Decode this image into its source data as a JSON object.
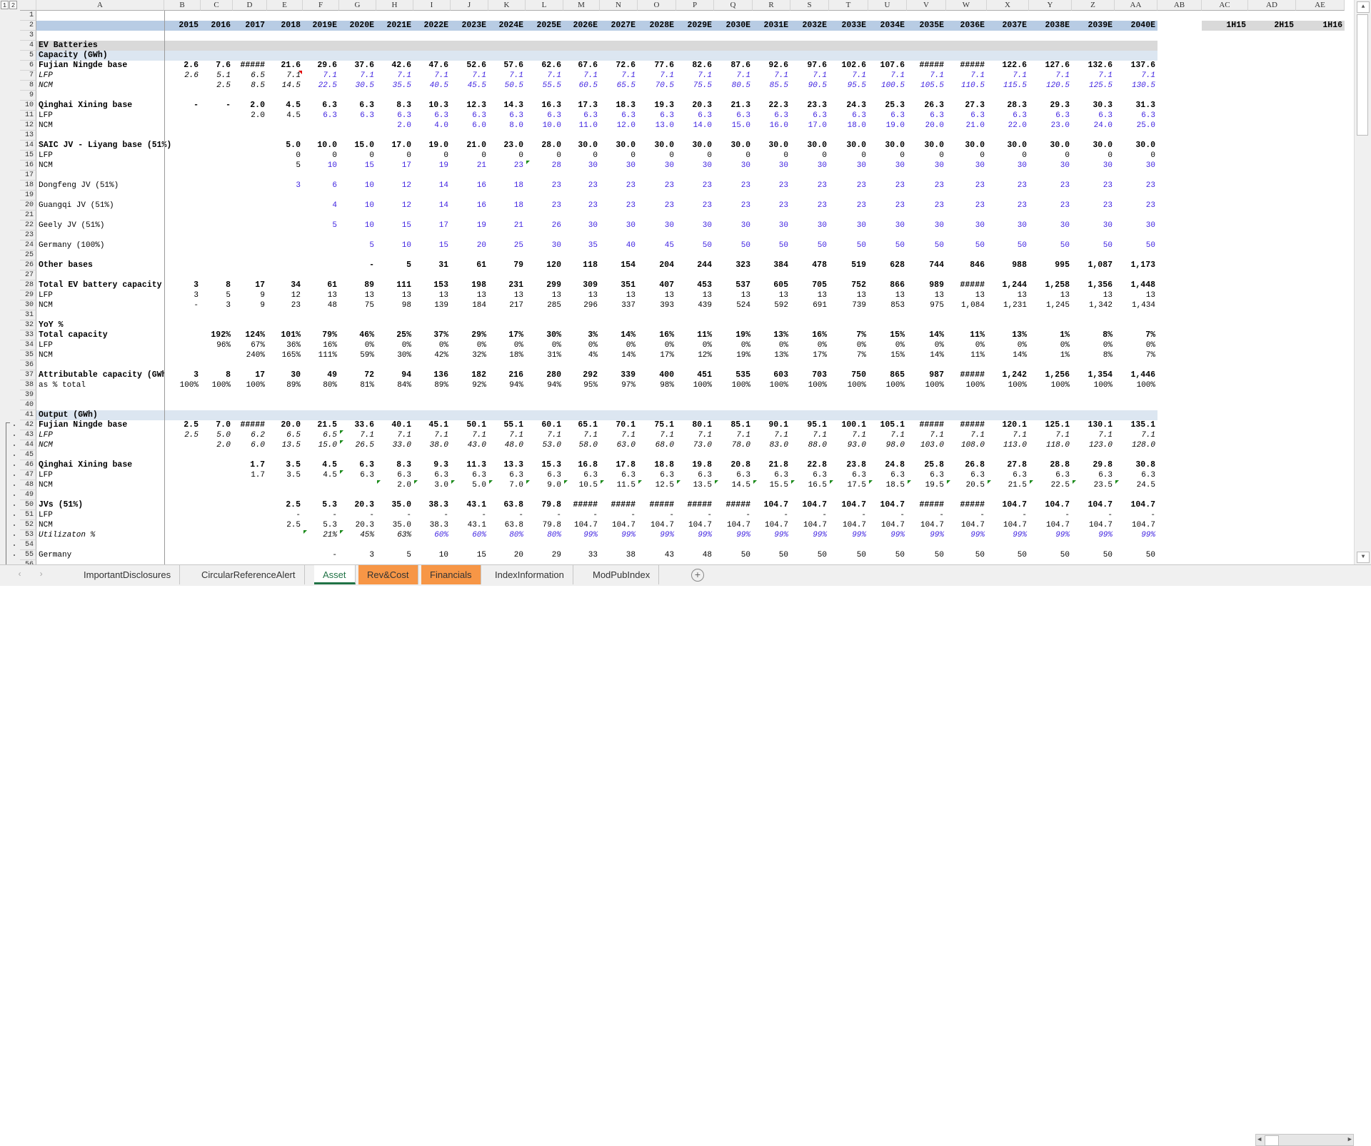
{
  "app": {
    "level_buttons": [
      "1",
      "2"
    ]
  },
  "columns": [
    "A",
    "B",
    "C",
    "D",
    "E",
    "F",
    "G",
    "H",
    "I",
    "J",
    "K",
    "L",
    "M",
    "N",
    "O",
    "P",
    "Q",
    "R",
    "S",
    "T",
    "U",
    "V",
    "W",
    "X",
    "Y",
    "Z",
    "AA",
    "AB",
    "AC",
    "AD",
    "AE"
  ],
  "half_year_headers": [
    "1H15",
    "2H15",
    "1H16"
  ],
  "row_numbers": [
    "1",
    "2",
    "3",
    "4",
    "5",
    "6",
    "7",
    "8",
    "9",
    "10",
    "11",
    "12",
    "13",
    "14",
    "15",
    "16",
    "17",
    "18",
    "19",
    "20",
    "21",
    "22",
    "23",
    "24",
    "25",
    "26",
    "27",
    "28",
    "29",
    "30",
    "31",
    "32",
    "33",
    "34",
    "35",
    "36",
    "37",
    "38",
    "39",
    "40",
    "41",
    "42",
    "43",
    "44",
    "45",
    "46",
    "47",
    "48",
    "49",
    "50",
    "51",
    "52",
    "53",
    "54",
    "55",
    "56"
  ],
  "colors": {
    "header_band": "#b8cce4",
    "section_band": "#d9d9d9",
    "subsection_band": "#dce6f1",
    "input_blue": "#3c1fe0",
    "tab_orange": "#f79646",
    "active_tab": "#217346"
  },
  "rows": [
    {
      "num": 2,
      "label": "",
      "values": [
        "2015",
        "2016",
        "2017",
        "2018",
        "2019E",
        "2020E",
        "2021E",
        "2022E",
        "2023E",
        "2024E",
        "2025E",
        "2026E",
        "2027E",
        "2028E",
        "2029E",
        "2030E",
        "2031E",
        "2032E",
        "2033E",
        "2034E",
        "2035E",
        "2036E",
        "2037E",
        "2038E",
        "2039E",
        "2040E"
      ]
    },
    {
      "num": 4,
      "label": "EV Batteries",
      "values": []
    },
    {
      "num": 5,
      "label": "Capacity (GWh)",
      "values": []
    },
    {
      "num": 6,
      "label": "Fujian Ningde base",
      "values": [
        "2.6",
        "7.6",
        "#####",
        "21.6",
        "29.6",
        "37.6",
        "42.6",
        "47.6",
        "52.6",
        "57.6",
        "62.6",
        "67.6",
        "72.6",
        "77.6",
        "82.6",
        "87.6",
        "92.6",
        "97.6",
        "102.6",
        "107.6",
        "#####",
        "#####",
        "122.6",
        "127.6",
        "132.6",
        "137.6"
      ]
    },
    {
      "num": 7,
      "label": "LFP",
      "values": [
        "2.6",
        "5.1",
        "6.5",
        "7.1",
        "7.1",
        "7.1",
        "7.1",
        "7.1",
        "7.1",
        "7.1",
        "7.1",
        "7.1",
        "7.1",
        "7.1",
        "7.1",
        "7.1",
        "7.1",
        "7.1",
        "7.1",
        "7.1",
        "7.1",
        "7.1",
        "7.1",
        "7.1",
        "7.1",
        "7.1"
      ]
    },
    {
      "num": 8,
      "label": "NCM",
      "values": [
        "",
        "2.5",
        "8.5",
        "14.5",
        "22.5",
        "30.5",
        "35.5",
        "40.5",
        "45.5",
        "50.5",
        "55.5",
        "60.5",
        "65.5",
        "70.5",
        "75.5",
        "80.5",
        "85.5",
        "90.5",
        "95.5",
        "100.5",
        "105.5",
        "110.5",
        "115.5",
        "120.5",
        "125.5",
        "130.5"
      ]
    },
    {
      "num": 10,
      "label": "Qinghai Xining base",
      "values": [
        "-",
        "-",
        "2.0",
        "4.5",
        "6.3",
        "6.3",
        "8.3",
        "10.3",
        "12.3",
        "14.3",
        "16.3",
        "17.3",
        "18.3",
        "19.3",
        "20.3",
        "21.3",
        "22.3",
        "23.3",
        "24.3",
        "25.3",
        "26.3",
        "27.3",
        "28.3",
        "29.3",
        "30.3",
        "31.3"
      ]
    },
    {
      "num": 11,
      "label": "LFP",
      "values": [
        "",
        "",
        "2.0",
        "4.5",
        "6.3",
        "6.3",
        "6.3",
        "6.3",
        "6.3",
        "6.3",
        "6.3",
        "6.3",
        "6.3",
        "6.3",
        "6.3",
        "6.3",
        "6.3",
        "6.3",
        "6.3",
        "6.3",
        "6.3",
        "6.3",
        "6.3",
        "6.3",
        "6.3",
        "6.3"
      ]
    },
    {
      "num": 12,
      "label": "NCM",
      "values": [
        "",
        "",
        "",
        "",
        "",
        "",
        "2.0",
        "4.0",
        "6.0",
        "8.0",
        "10.0",
        "11.0",
        "12.0",
        "13.0",
        "14.0",
        "15.0",
        "16.0",
        "17.0",
        "18.0",
        "19.0",
        "20.0",
        "21.0",
        "22.0",
        "23.0",
        "24.0",
        "25.0"
      ]
    },
    {
      "num": 14,
      "label": "SAIC JV - Liyang base (51%)",
      "values": [
        "",
        "",
        "",
        "5.0",
        "10.0",
        "15.0",
        "17.0",
        "19.0",
        "21.0",
        "23.0",
        "28.0",
        "30.0",
        "30.0",
        "30.0",
        "30.0",
        "30.0",
        "30.0",
        "30.0",
        "30.0",
        "30.0",
        "30.0",
        "30.0",
        "30.0",
        "30.0",
        "30.0",
        "30.0"
      ]
    },
    {
      "num": 15,
      "label": "LFP",
      "values": [
        "",
        "",
        "",
        "0",
        "0",
        "0",
        "0",
        "0",
        "0",
        "0",
        "0",
        "0",
        "0",
        "0",
        "0",
        "0",
        "0",
        "0",
        "0",
        "0",
        "0",
        "0",
        "0",
        "0",
        "0",
        "0"
      ]
    },
    {
      "num": 16,
      "label": "NCM",
      "values": [
        "",
        "",
        "",
        "5",
        "10",
        "15",
        "17",
        "19",
        "21",
        "23",
        "28",
        "30",
        "30",
        "30",
        "30",
        "30",
        "30",
        "30",
        "30",
        "30",
        "30",
        "30",
        "30",
        "30",
        "30",
        "30"
      ]
    },
    {
      "num": 18,
      "label": "Dongfeng JV (51%)",
      "values": [
        "",
        "",
        "",
        "3",
        "6",
        "10",
        "12",
        "14",
        "16",
        "18",
        "23",
        "23",
        "23",
        "23",
        "23",
        "23",
        "23",
        "23",
        "23",
        "23",
        "23",
        "23",
        "23",
        "23",
        "23",
        "23"
      ]
    },
    {
      "num": 20,
      "label": "Guangqi JV (51%)",
      "values": [
        "",
        "",
        "",
        "",
        "4",
        "10",
        "12",
        "14",
        "16",
        "18",
        "23",
        "23",
        "23",
        "23",
        "23",
        "23",
        "23",
        "23",
        "23",
        "23",
        "23",
        "23",
        "23",
        "23",
        "23",
        "23"
      ]
    },
    {
      "num": 22,
      "label": "Geely JV (51%)",
      "values": [
        "",
        "",
        "",
        "",
        "5",
        "10",
        "15",
        "17",
        "19",
        "21",
        "26",
        "30",
        "30",
        "30",
        "30",
        "30",
        "30",
        "30",
        "30",
        "30",
        "30",
        "30",
        "30",
        "30",
        "30",
        "30"
      ]
    },
    {
      "num": 24,
      "label": "Germany (100%)",
      "values": [
        "",
        "",
        "",
        "",
        "",
        "5",
        "10",
        "15",
        "20",
        "25",
        "30",
        "35",
        "40",
        "45",
        "50",
        "50",
        "50",
        "50",
        "50",
        "50",
        "50",
        "50",
        "50",
        "50",
        "50",
        "50"
      ]
    },
    {
      "num": 26,
      "label": "Other bases",
      "values": [
        "",
        "",
        "",
        "",
        "",
        "-",
        "5",
        "31",
        "61",
        "79",
        "120",
        "118",
        "154",
        "204",
        "244",
        "323",
        "384",
        "478",
        "519",
        "628",
        "744",
        "846",
        "988",
        "995",
        "1,087",
        "1,173"
      ]
    },
    {
      "num": 28,
      "label": "Total EV battery capacity",
      "values": [
        "3",
        "8",
        "17",
        "34",
        "61",
        "89",
        "111",
        "153",
        "198",
        "231",
        "299",
        "309",
        "351",
        "407",
        "453",
        "537",
        "605",
        "705",
        "752",
        "866",
        "989",
        "#####",
        "1,244",
        "1,258",
        "1,356",
        "1,448"
      ]
    },
    {
      "num": 29,
      "label": "LFP",
      "values": [
        "3",
        "5",
        "9",
        "12",
        "13",
        "13",
        "13",
        "13",
        "13",
        "13",
        "13",
        "13",
        "13",
        "13",
        "13",
        "13",
        "13",
        "13",
        "13",
        "13",
        "13",
        "13",
        "13",
        "13",
        "13",
        "13"
      ]
    },
    {
      "num": 30,
      "label": "NCM",
      "values": [
        "-",
        "3",
        "9",
        "23",
        "48",
        "75",
        "98",
        "139",
        "184",
        "217",
        "285",
        "296",
        "337",
        "393",
        "439",
        "524",
        "592",
        "691",
        "739",
        "853",
        "975",
        "1,084",
        "1,231",
        "1,245",
        "1,342",
        "1,434"
      ]
    },
    {
      "num": 32,
      "label": "YoY %",
      "values": []
    },
    {
      "num": 33,
      "label": "Total capacity",
      "values": [
        "",
        "192%",
        "124%",
        "101%",
        "79%",
        "46%",
        "25%",
        "37%",
        "29%",
        "17%",
        "30%",
        "3%",
        "14%",
        "16%",
        "11%",
        "19%",
        "13%",
        "16%",
        "7%",
        "15%",
        "14%",
        "11%",
        "13%",
        "1%",
        "8%",
        "7%"
      ]
    },
    {
      "num": 34,
      "label": "LFP",
      "values": [
        "",
        "96%",
        "67%",
        "36%",
        "16%",
        "0%",
        "0%",
        "0%",
        "0%",
        "0%",
        "0%",
        "0%",
        "0%",
        "0%",
        "0%",
        "0%",
        "0%",
        "0%",
        "0%",
        "0%",
        "0%",
        "0%",
        "0%",
        "0%",
        "0%",
        "0%"
      ]
    },
    {
      "num": 35,
      "label": "NCM",
      "values": [
        "",
        "",
        "240%",
        "165%",
        "111%",
        "59%",
        "30%",
        "42%",
        "32%",
        "18%",
        "31%",
        "4%",
        "14%",
        "17%",
        "12%",
        "19%",
        "13%",
        "17%",
        "7%",
        "15%",
        "14%",
        "11%",
        "14%",
        "1%",
        "8%",
        "7%"
      ]
    },
    {
      "num": 37,
      "label": "Attributable capacity (GWh)",
      "values": [
        "3",
        "8",
        "17",
        "30",
        "49",
        "72",
        "94",
        "136",
        "182",
        "216",
        "280",
        "292",
        "339",
        "400",
        "451",
        "535",
        "603",
        "703",
        "750",
        "865",
        "987",
        "#####",
        "1,242",
        "1,256",
        "1,354",
        "1,446"
      ]
    },
    {
      "num": 38,
      "label": "as % total",
      "values": [
        "100%",
        "100%",
        "100%",
        "89%",
        "80%",
        "81%",
        "84%",
        "89%",
        "92%",
        "94%",
        "94%",
        "95%",
        "97%",
        "98%",
        "100%",
        "100%",
        "100%",
        "100%",
        "100%",
        "100%",
        "100%",
        "100%",
        "100%",
        "100%",
        "100%",
        "100%"
      ]
    },
    {
      "num": 41,
      "label": "Output (GWh)",
      "values": []
    },
    {
      "num": 42,
      "label": "Fujian Ningde base",
      "values": [
        "2.5",
        "7.0",
        "#####",
        "20.0",
        "21.5",
        "33.6",
        "40.1",
        "45.1",
        "50.1",
        "55.1",
        "60.1",
        "65.1",
        "70.1",
        "75.1",
        "80.1",
        "85.1",
        "90.1",
        "95.1",
        "100.1",
        "105.1",
        "#####",
        "#####",
        "120.1",
        "125.1",
        "130.1",
        "135.1"
      ]
    },
    {
      "num": 43,
      "label": "LFP",
      "values": [
        "2.5",
        "5.0",
        "6.2",
        "6.5",
        "6.5",
        "7.1",
        "7.1",
        "7.1",
        "7.1",
        "7.1",
        "7.1",
        "7.1",
        "7.1",
        "7.1",
        "7.1",
        "7.1",
        "7.1",
        "7.1",
        "7.1",
        "7.1",
        "7.1",
        "7.1",
        "7.1",
        "7.1",
        "7.1",
        "7.1"
      ]
    },
    {
      "num": 44,
      "label": "NCM",
      "values": [
        "",
        "2.0",
        "6.0",
        "13.5",
        "15.0",
        "26.5",
        "33.0",
        "38.0",
        "43.0",
        "48.0",
        "53.0",
        "58.0",
        "63.0",
        "68.0",
        "73.0",
        "78.0",
        "83.0",
        "88.0",
        "93.0",
        "98.0",
        "103.0",
        "108.0",
        "113.0",
        "118.0",
        "123.0",
        "128.0"
      ]
    },
    {
      "num": 46,
      "label": "Qinghai Xining base",
      "values": [
        "",
        "",
        "1.7",
        "3.5",
        "4.5",
        "6.3",
        "8.3",
        "9.3",
        "11.3",
        "13.3",
        "15.3",
        "16.8",
        "17.8",
        "18.8",
        "19.8",
        "20.8",
        "21.8",
        "22.8",
        "23.8",
        "24.8",
        "25.8",
        "26.8",
        "27.8",
        "28.8",
        "29.8",
        "30.8"
      ]
    },
    {
      "num": 47,
      "label": "LFP",
      "values": [
        "",
        "",
        "1.7",
        "3.5",
        "4.5",
        "6.3",
        "6.3",
        "6.3",
        "6.3",
        "6.3",
        "6.3",
        "6.3",
        "6.3",
        "6.3",
        "6.3",
        "6.3",
        "6.3",
        "6.3",
        "6.3",
        "6.3",
        "6.3",
        "6.3",
        "6.3",
        "6.3",
        "6.3",
        "6.3"
      ]
    },
    {
      "num": 48,
      "label": "NCM",
      "values": [
        "",
        "",
        "",
        "",
        "",
        "",
        "2.0",
        "3.0",
        "5.0",
        "7.0",
        "9.0",
        "10.5",
        "11.5",
        "12.5",
        "13.5",
        "14.5",
        "15.5",
        "16.5",
        "17.5",
        "18.5",
        "19.5",
        "20.5",
        "21.5",
        "22.5",
        "23.5",
        "24.5"
      ]
    },
    {
      "num": 50,
      "label": "JVs (51%)",
      "values": [
        "",
        "",
        "",
        "2.5",
        "5.3",
        "20.3",
        "35.0",
        "38.3",
        "43.1",
        "63.8",
        "79.8",
        "#####",
        "#####",
        "#####",
        "#####",
        "#####",
        "104.7",
        "104.7",
        "104.7",
        "104.7",
        "#####",
        "#####",
        "104.7",
        "104.7",
        "104.7",
        "104.7"
      ]
    },
    {
      "num": 51,
      "label": "LFP",
      "values": [
        "",
        "",
        "",
        "-",
        "-",
        "-",
        "-",
        "-",
        "-",
        "-",
        "-",
        "-",
        "-",
        "-",
        "-",
        "-",
        "-",
        "-",
        "-",
        "-",
        "-",
        "-",
        "-",
        "-",
        "-",
        "-"
      ]
    },
    {
      "num": 52,
      "label": "NCM",
      "values": [
        "",
        "",
        "",
        "2.5",
        "5.3",
        "20.3",
        "35.0",
        "38.3",
        "43.1",
        "63.8",
        "79.8",
        "104.7",
        "104.7",
        "104.7",
        "104.7",
        "104.7",
        "104.7",
        "104.7",
        "104.7",
        "104.7",
        "104.7",
        "104.7",
        "104.7",
        "104.7",
        "104.7",
        "104.7"
      ]
    },
    {
      "num": 53,
      "label": "Utilizaton %",
      "values": [
        "",
        "",
        "",
        "",
        "21%",
        "45%",
        "63%",
        "60%",
        "60%",
        "80%",
        "80%",
        "99%",
        "99%",
        "99%",
        "99%",
        "99%",
        "99%",
        "99%",
        "99%",
        "99%",
        "99%",
        "99%",
        "99%",
        "99%",
        "99%",
        "99%"
      ]
    },
    {
      "num": 55,
      "label": "Germany",
      "values": [
        "",
        "",
        "",
        "",
        "-",
        "3",
        "5",
        "10",
        "15",
        "20",
        "29",
        "33",
        "38",
        "43",
        "48",
        "50",
        "50",
        "50",
        "50",
        "50",
        "50",
        "50",
        "50",
        "50",
        "50",
        "50"
      ]
    }
  ],
  "sheet_tabs": [
    {
      "label": "ImportantDisclosures",
      "state": "normal"
    },
    {
      "label": "CircularReferenceAlert",
      "state": "normal"
    },
    {
      "label": "Asset",
      "state": "active"
    },
    {
      "label": "Rev&Cost",
      "state": "orange"
    },
    {
      "label": "Financials",
      "state": "orange"
    },
    {
      "label": "IndexInformation",
      "state": "normal"
    },
    {
      "label": "ModPubIndex",
      "state": "normal"
    }
  ],
  "add_sheet_label": "+",
  "icons": {
    "prev_sheet": "chevron-left-icon",
    "next_sheet": "chevron-right-icon",
    "add_sheet": "plus-circle-icon",
    "scroll_up": "triangle-up-icon",
    "scroll_down": "triangle-down-icon"
  }
}
